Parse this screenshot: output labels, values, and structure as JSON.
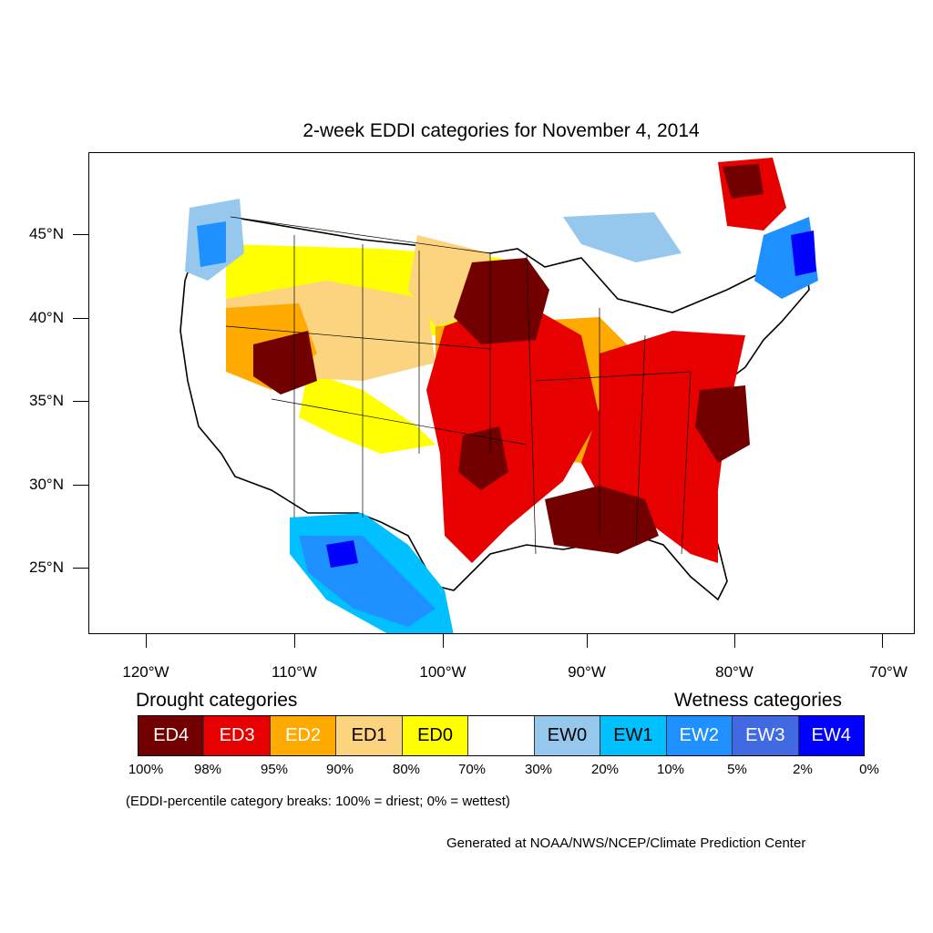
{
  "title": "2-week EDDI categories for November 4, 2014",
  "lat_labels": [
    "45°N",
    "40°N",
    "35°N",
    "30°N",
    "25°N"
  ],
  "lon_labels": [
    "120°W",
    "110°W",
    "100°W",
    "90°W",
    "80°W",
    "70°W"
  ],
  "legend": {
    "drought_heading": "Drought categories",
    "wetness_heading": "Wetness categories",
    "categories": [
      {
        "label": "ED4",
        "color": "#730000",
        "text_color": "#ffffff"
      },
      {
        "label": "ED3",
        "color": "#e60000",
        "text_color": "#ffffff"
      },
      {
        "label": "ED2",
        "color": "#ffaa00",
        "text_color": "#ffffff"
      },
      {
        "label": "ED1",
        "color": "#fcd37f",
        "text_color": "#000000"
      },
      {
        "label": "ED0",
        "color": "#ffff00",
        "text_color": "#000000"
      },
      {
        "label": "",
        "color": "#ffffff",
        "text_color": "#000000"
      },
      {
        "label": "EW0",
        "color": "#96c8ee",
        "text_color": "#000000"
      },
      {
        "label": "EW1",
        "color": "#00c0ff",
        "text_color": "#000000"
      },
      {
        "label": "EW2",
        "color": "#1e90ff",
        "text_color": "#ffffff"
      },
      {
        "label": "EW3",
        "color": "#4169e1",
        "text_color": "#ffffff"
      },
      {
        "label": "EW4",
        "color": "#0000ff",
        "text_color": "#ffffff"
      }
    ],
    "percentiles": [
      "100%",
      "98%",
      "95%",
      "90%",
      "80%",
      "70%",
      "30%",
      "20%",
      "10%",
      "5%",
      "2%",
      "0%"
    ]
  },
  "note": "(EDDI-percentile category breaks: 100% = driest; 0% = wettest)",
  "credit": "Generated at NOAA/NWS/NCEP/Climate Prediction Center"
}
